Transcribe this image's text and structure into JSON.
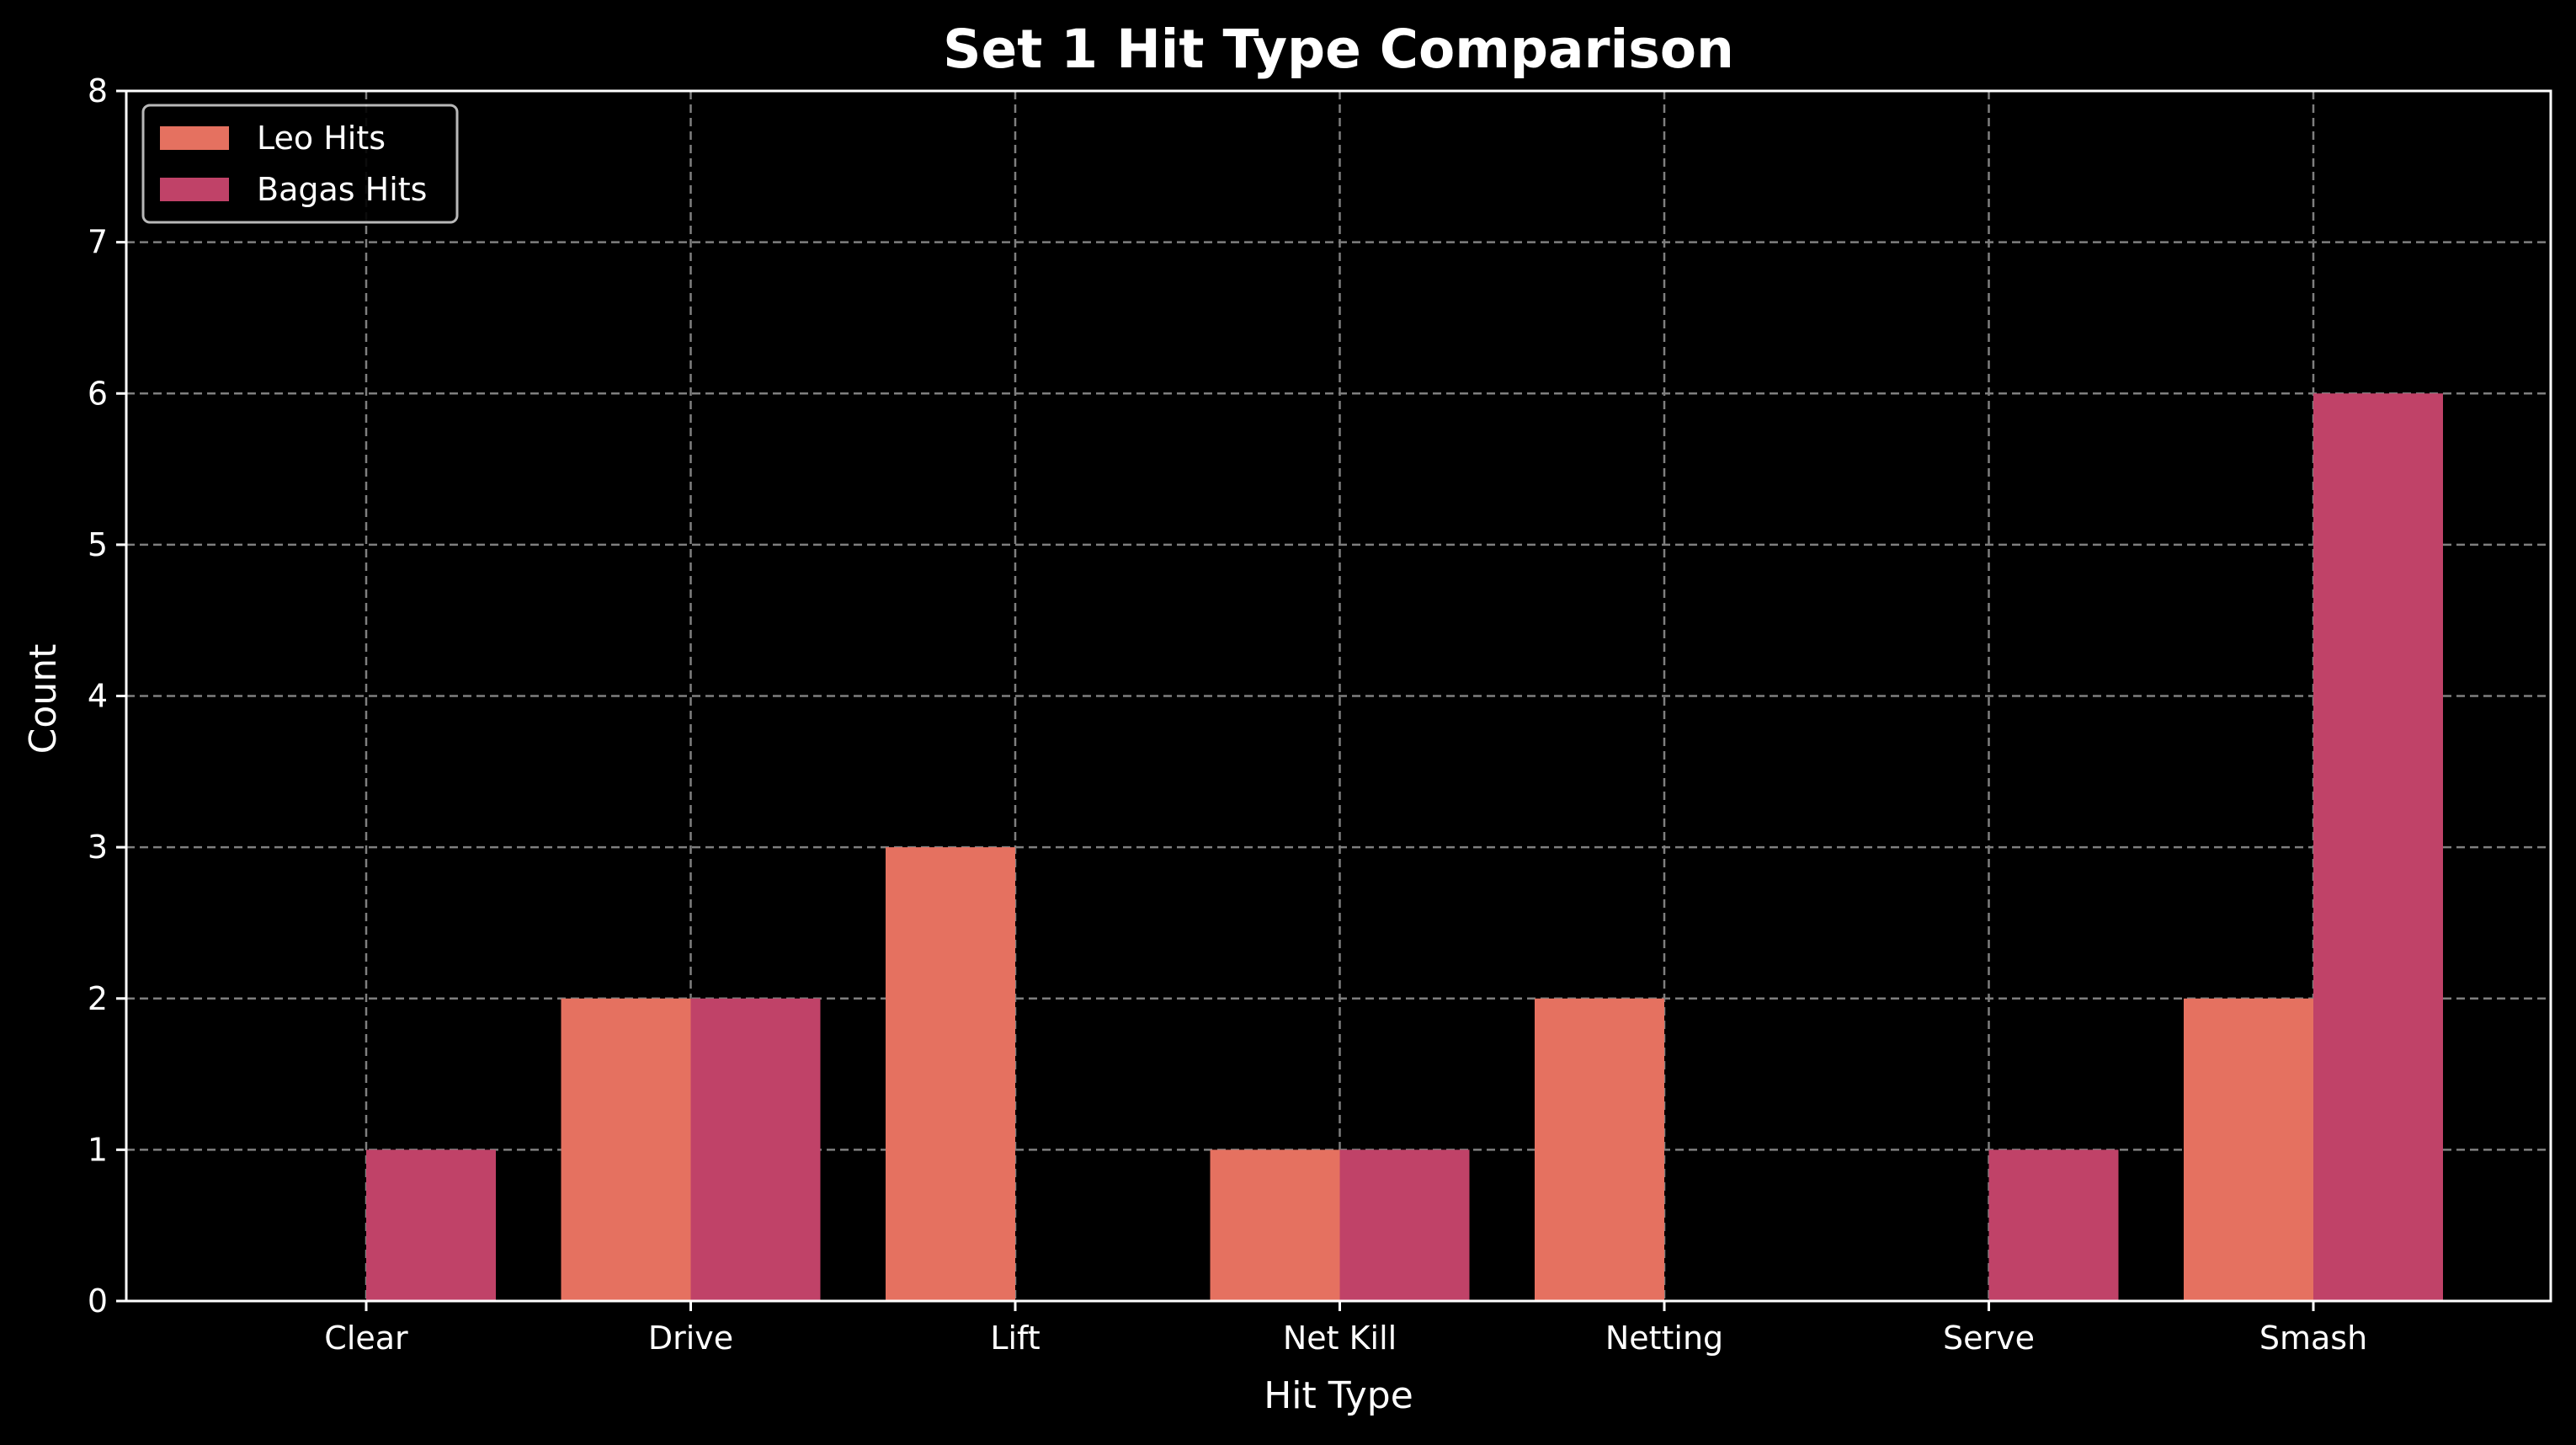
{
  "chart_data": {
    "type": "bar",
    "title": "Set 1 Hit Type Comparison",
    "xlabel": "Hit Type",
    "ylabel": "Count",
    "categories": [
      "Clear",
      "Drive",
      "Lift",
      "Net Kill",
      "Netting",
      "Serve",
      "Smash"
    ],
    "series": [
      {
        "name": "Leo Hits",
        "values": [
          0,
          2,
          3,
          1,
          2,
          0,
          2
        ],
        "color": "#e57160"
      },
      {
        "name": "Bagas Hits",
        "values": [
          1,
          2,
          0,
          1,
          0,
          1,
          6
        ],
        "color": "#c04268"
      }
    ],
    "ylim": [
      0,
      8
    ],
    "yticks": [
      "0",
      "1",
      "2",
      "3",
      "4",
      "5",
      "6",
      "7",
      "8"
    ],
    "grid": true,
    "legend_position": "top-left",
    "colors": {
      "background": "#000000",
      "text": "#ffffff",
      "grid": "#7f7f7f",
      "axis": "#ffffff"
    }
  }
}
